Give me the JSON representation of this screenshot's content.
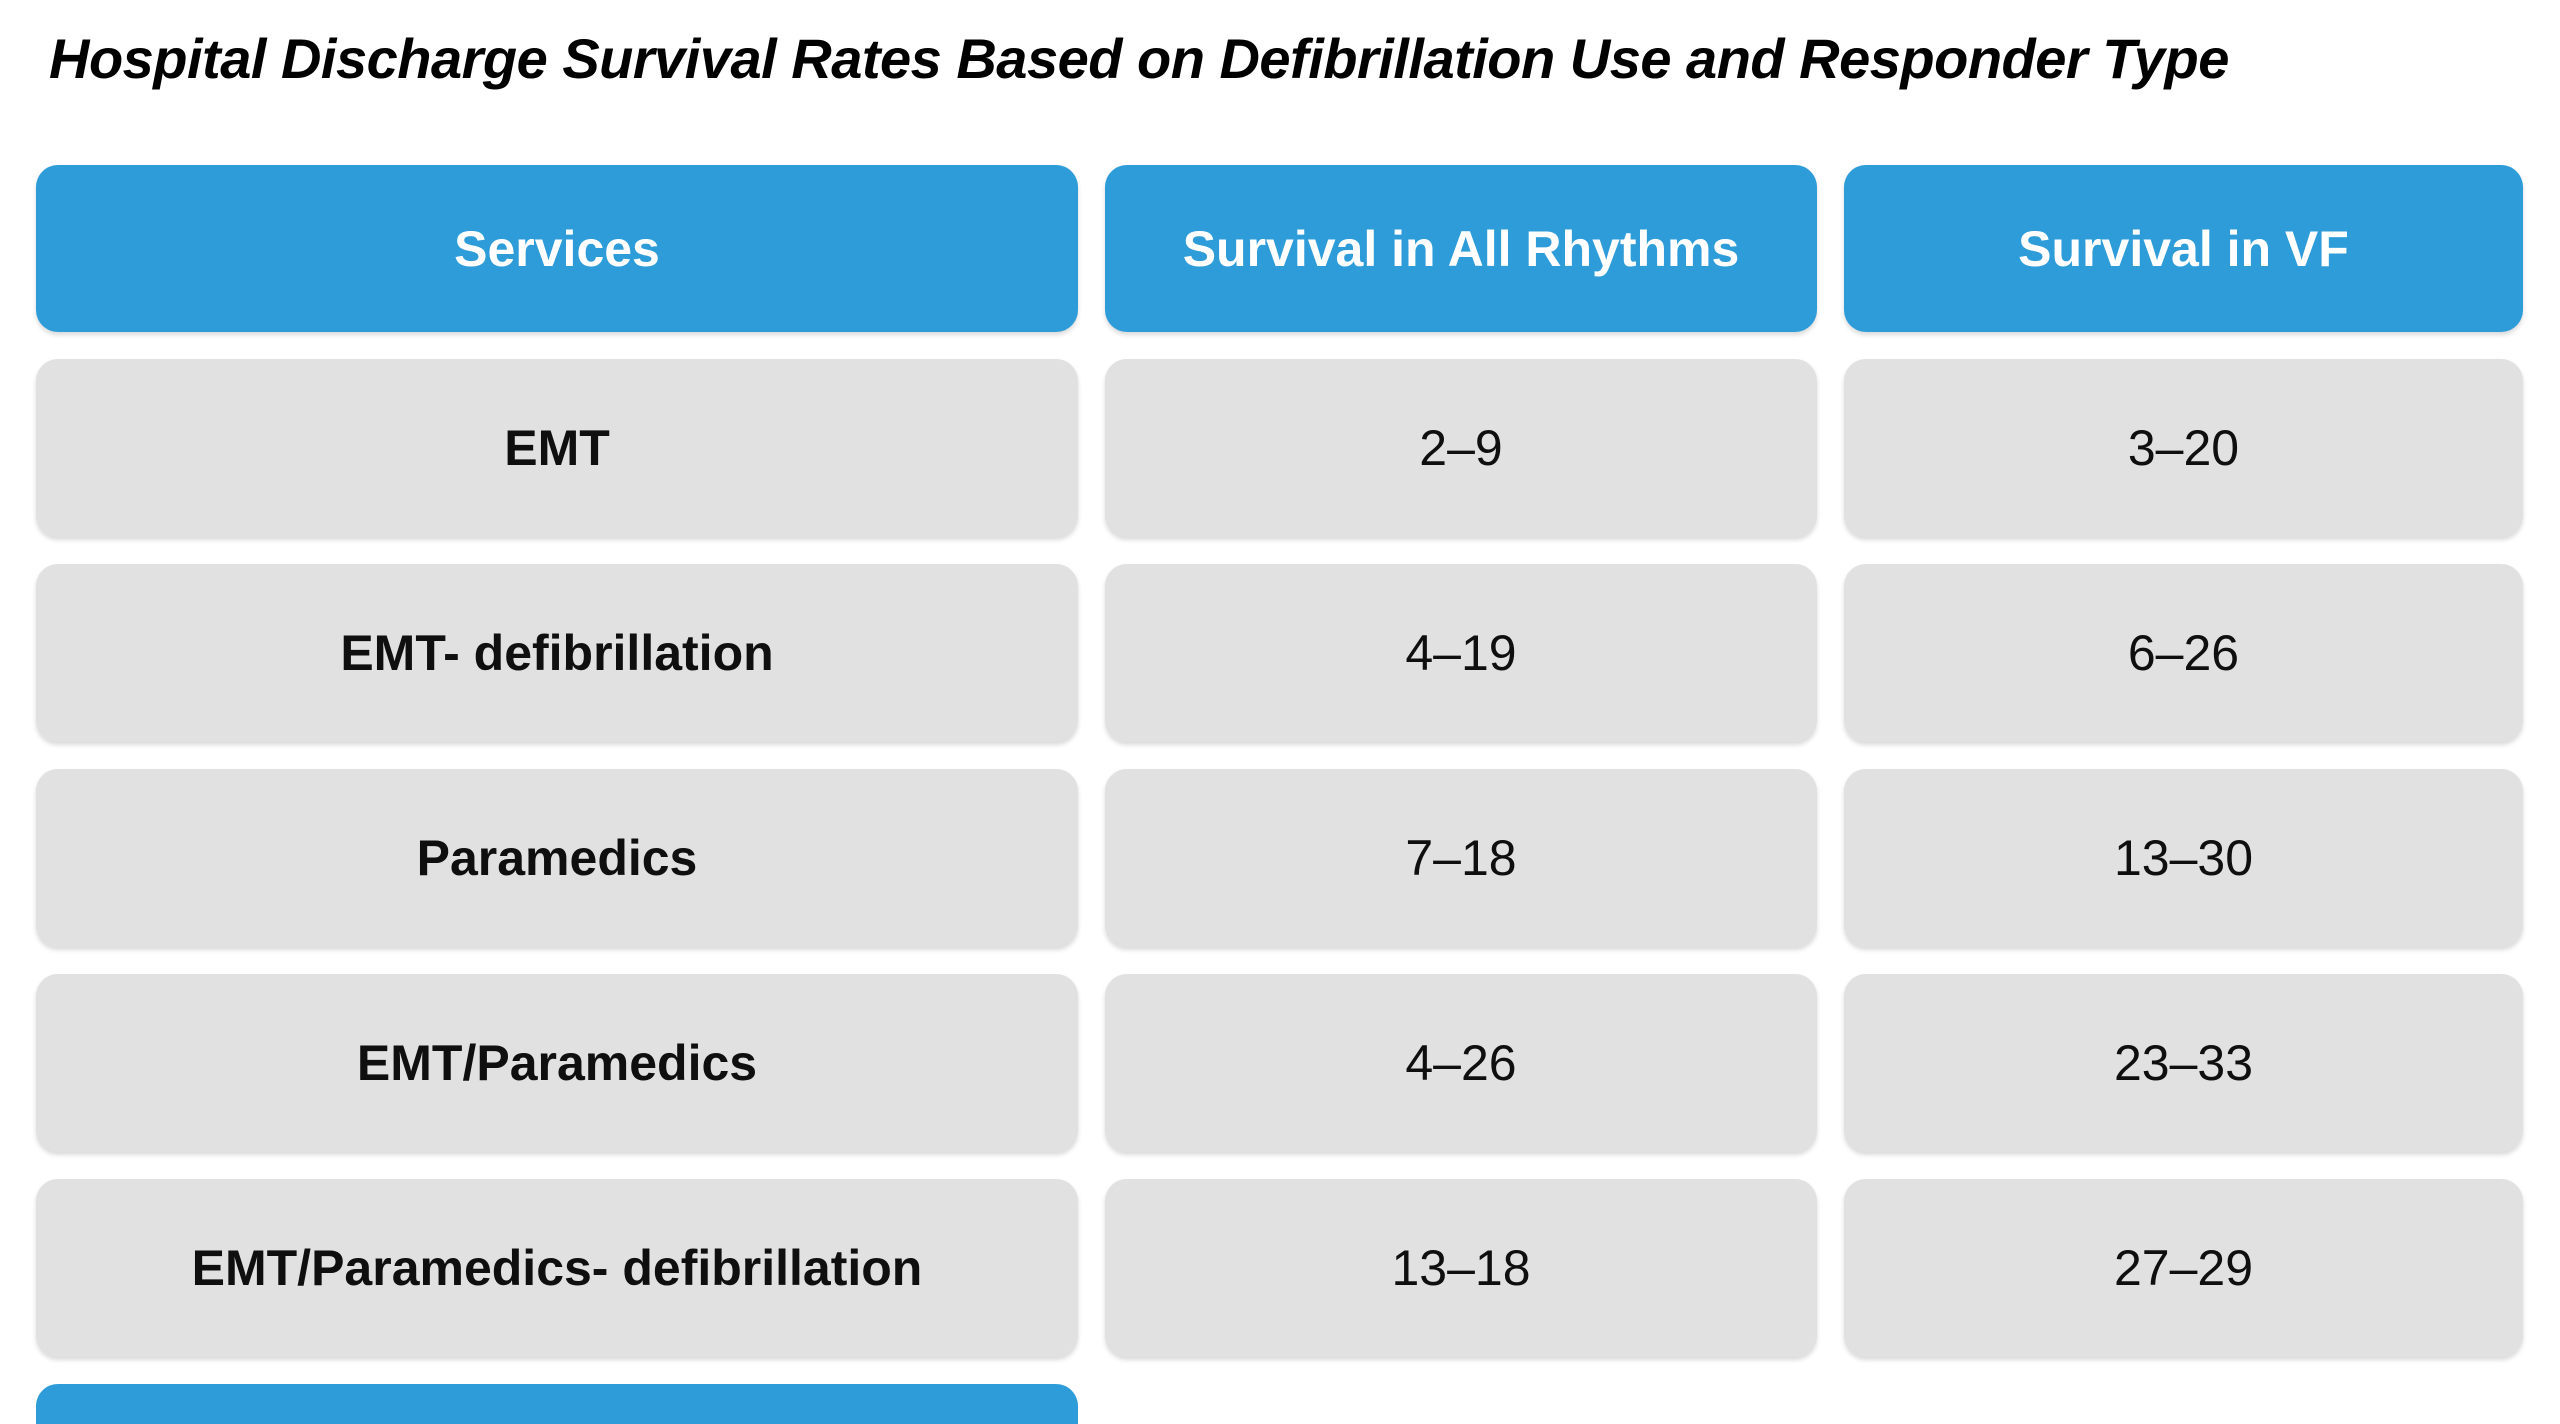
{
  "title": "Hospital Discharge Survival Rates Based on Defibrillation Use and Responder Type",
  "colors": {
    "header_bg": "#2D9CD9",
    "header_text": "#FFFFFF",
    "row_bg": "#E1E1E1",
    "body_text": "#0F0F0F",
    "background": "#FFFFFF"
  },
  "chart_data": {
    "type": "table",
    "title": "Hospital Discharge Survival Rates Based on Defibrillation Use and Responder Type",
    "columns": [
      "Services",
      "Survival in All Rhythms",
      "Survival in VF"
    ],
    "rows": [
      [
        "EMT",
        "2–9",
        "3–20"
      ],
      [
        "EMT- defibrillation",
        "4–19",
        "6–26"
      ],
      [
        "Paramedics",
        "7–18",
        "13–30"
      ],
      [
        "EMT/Paramedics",
        "4–26",
        "23–33"
      ],
      [
        "EMT/Paramedics- defibrillation",
        "13–18",
        "27–29"
      ]
    ],
    "notes": "Values are survival-rate ranges (percent). Bottom edge shows the top sliver of an additional blue header cell cut off by the image boundary under column 1."
  }
}
